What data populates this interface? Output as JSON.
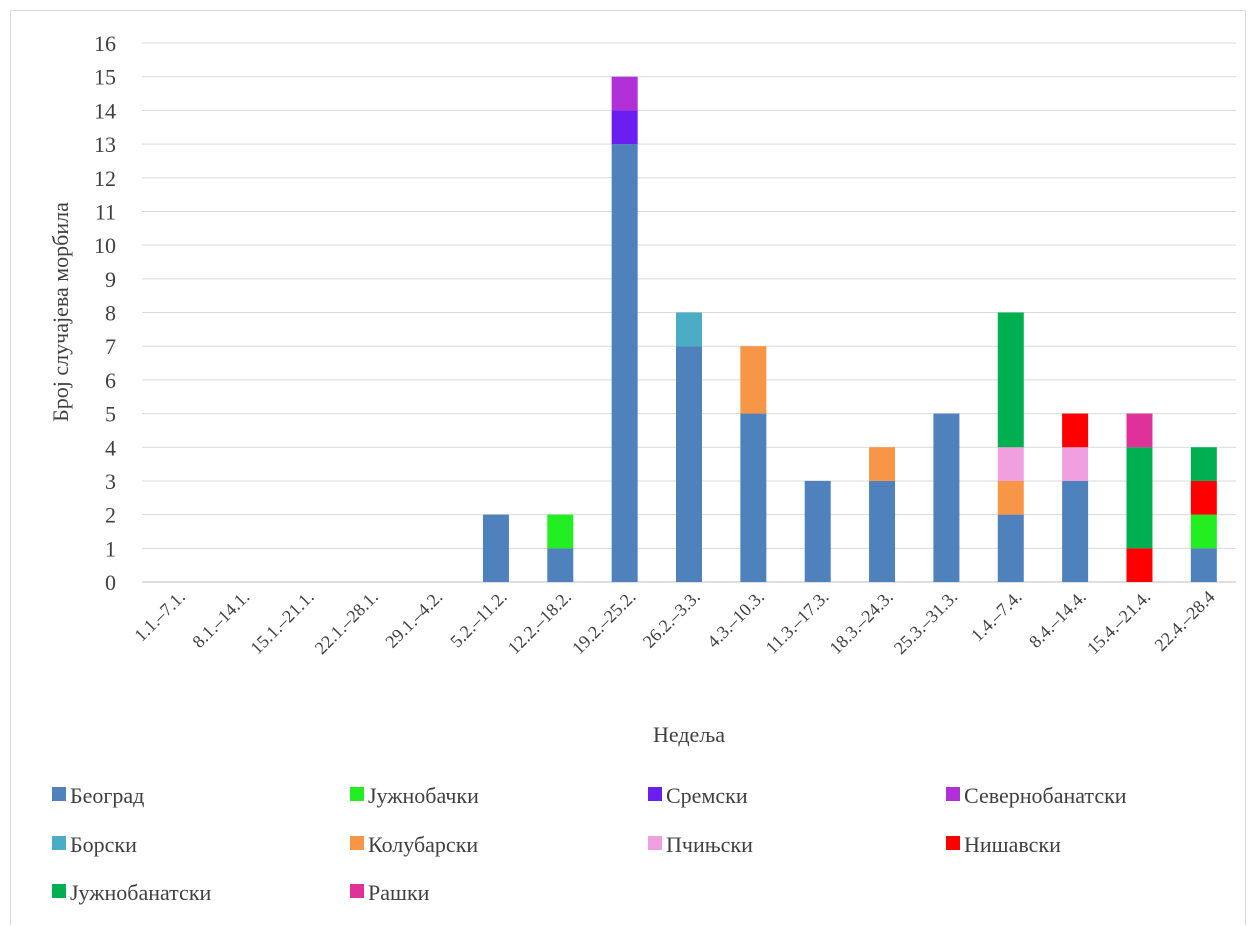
{
  "chart_data": {
    "type": "bar",
    "stacked": true,
    "title": "",
    "xlabel": "Недеља",
    "ylabel": "Број случајева морбила",
    "ylim": [
      0,
      16
    ],
    "grid": true,
    "legend_position": "bottom",
    "categories": [
      "1.1.–7.1.",
      "8.1.–14.1.",
      "15.1.–21.1.",
      "22.1.–28.1.",
      "29.1.–4.2.",
      "5.2.–11.2.",
      "12.2.–18.2.",
      "19.2.–25.2.",
      "26.2.–3.3.",
      "4.3.–10.3.",
      "11.3.–17.3.",
      "18.3.–24.3.",
      "25.3.–31.3.",
      "1.4.–7.4.",
      "8.4.–14.4.",
      "15.4.–21.4.",
      "22.4.–28.4"
    ],
    "series": [
      {
        "name": "Београд",
        "color": "#4f81bd",
        "values": [
          0,
          0,
          0,
          0,
          0,
          2,
          1,
          13,
          7,
          5,
          3,
          3,
          5,
          2,
          3,
          0,
          1
        ]
      },
      {
        "name": "Јужнобачки",
        "color": "#22ee22",
        "values": [
          0,
          0,
          0,
          0,
          0,
          0,
          1,
          0,
          0,
          0,
          0,
          0,
          0,
          0,
          0,
          0,
          1
        ]
      },
      {
        "name": "Сремски",
        "color": "#6a1ef0",
        "values": [
          0,
          0,
          0,
          0,
          0,
          0,
          0,
          1,
          0,
          0,
          0,
          0,
          0,
          0,
          0,
          0,
          0
        ]
      },
      {
        "name": "Севернобанатски",
        "color": "#b02fd6",
        "values": [
          0,
          0,
          0,
          0,
          0,
          0,
          0,
          1,
          0,
          0,
          0,
          0,
          0,
          0,
          0,
          0,
          0
        ]
      },
      {
        "name": "Борски",
        "color": "#4bacc6",
        "values": [
          0,
          0,
          0,
          0,
          0,
          0,
          0,
          0,
          1,
          0,
          0,
          0,
          0,
          0,
          0,
          0,
          0
        ]
      },
      {
        "name": "Колубарски",
        "color": "#f79646",
        "values": [
          0,
          0,
          0,
          0,
          0,
          0,
          0,
          0,
          0,
          2,
          0,
          1,
          0,
          1,
          0,
          0,
          0
        ]
      },
      {
        "name": "Пчињски",
        "color": "#f0a0e0",
        "values": [
          0,
          0,
          0,
          0,
          0,
          0,
          0,
          0,
          0,
          0,
          0,
          0,
          0,
          1,
          1,
          0,
          0
        ]
      },
      {
        "name": "Нишавски",
        "color": "#ff0000",
        "values": [
          0,
          0,
          0,
          0,
          0,
          0,
          0,
          0,
          0,
          0,
          0,
          0,
          0,
          0,
          1,
          1,
          1
        ]
      },
      {
        "name": "Јужнобанатски",
        "color": "#00b050",
        "values": [
          0,
          0,
          0,
          0,
          0,
          0,
          0,
          0,
          0,
          0,
          0,
          0,
          0,
          4,
          0,
          3,
          1
        ]
      },
      {
        "name": "Рашки",
        "color": "#e0309a",
        "values": [
          0,
          0,
          0,
          0,
          0,
          0,
          0,
          0,
          0,
          0,
          0,
          0,
          0,
          0,
          0,
          1,
          0
        ]
      }
    ]
  }
}
